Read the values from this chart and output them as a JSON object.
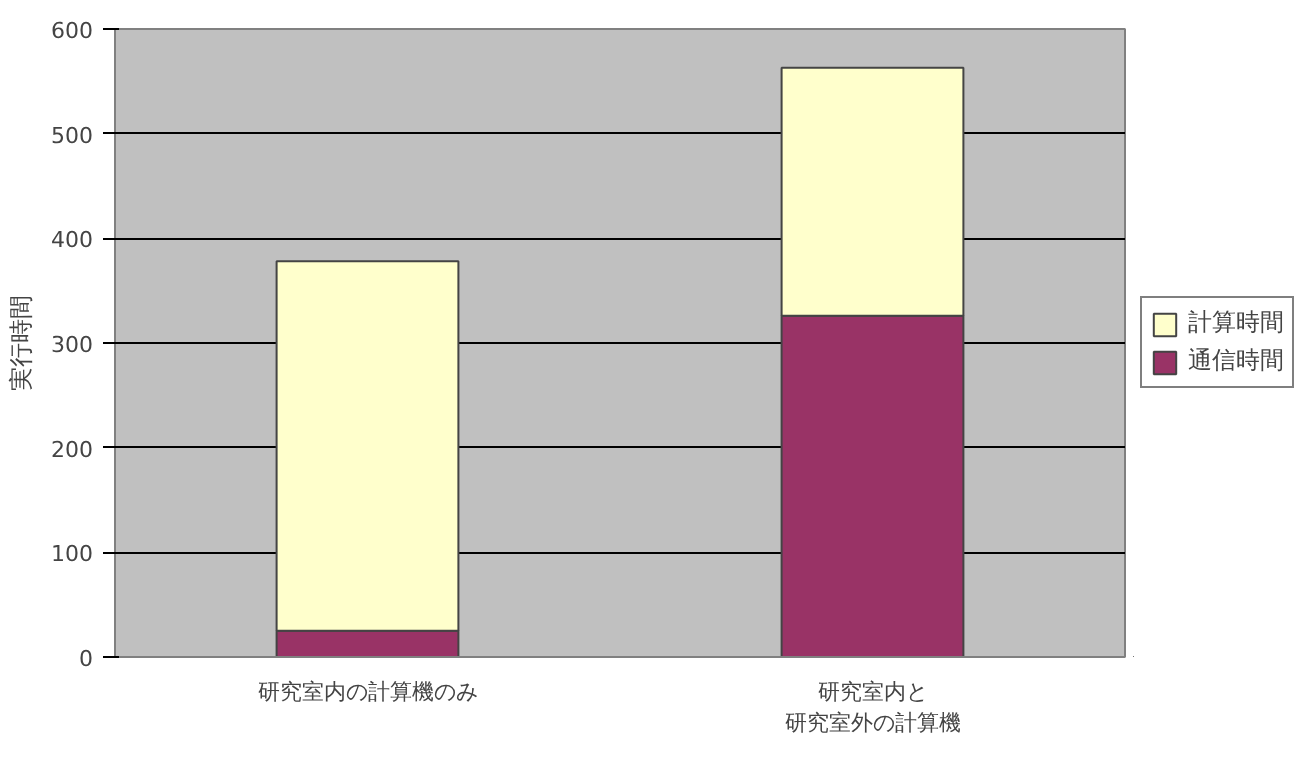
{
  "chart_data": {
    "type": "bar",
    "stacked": true,
    "ylabel": "実行時間",
    "categories": [
      "研究室内の計算機のみ",
      "研究室内と研究室外の計算機"
    ],
    "series": [
      {
        "name": "通信時間",
        "color": "#993366",
        "values": [
          25,
          326
        ]
      },
      {
        "name": "計算時間",
        "color": "#ffffcc",
        "values": [
          353,
          237
        ]
      }
    ],
    "ylim": [
      0,
      600
    ],
    "yticks": [
      0,
      100,
      200,
      300,
      400,
      500,
      600
    ],
    "grid": "y",
    "legend": "right"
  }
}
